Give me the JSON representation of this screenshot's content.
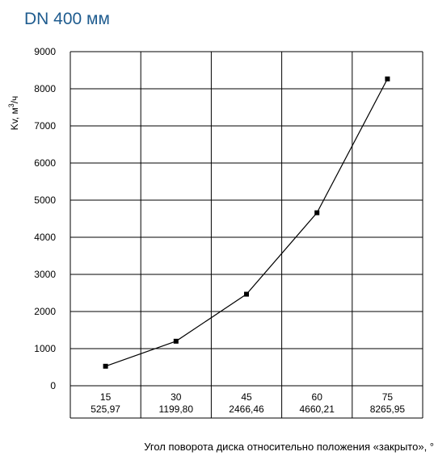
{
  "chart_data": {
    "type": "line",
    "title": "DN 400  мм",
    "ylabel_prefix": "Kv, м",
    "ylabel_sup": "3",
    "ylabel_suffix": "/ч",
    "xlabel": "Угол поворота диска относительно положения «закрыто», °",
    "ylim": [
      0,
      9000
    ],
    "yticks": [
      "0",
      "1000",
      "2000",
      "3000",
      "4000",
      "5000",
      "6000",
      "7000",
      "8000",
      "9000"
    ],
    "categories": [
      "15",
      "30",
      "45",
      "60",
      "75"
    ],
    "category_values": [
      "525,97",
      "1199,80",
      "2466,46",
      "4660,21",
      "8265,95"
    ],
    "values": [
      525.97,
      1199.8,
      2466.46,
      4660.21,
      8265.95
    ],
    "grid": true,
    "legend": "none",
    "color": "#000000"
  }
}
